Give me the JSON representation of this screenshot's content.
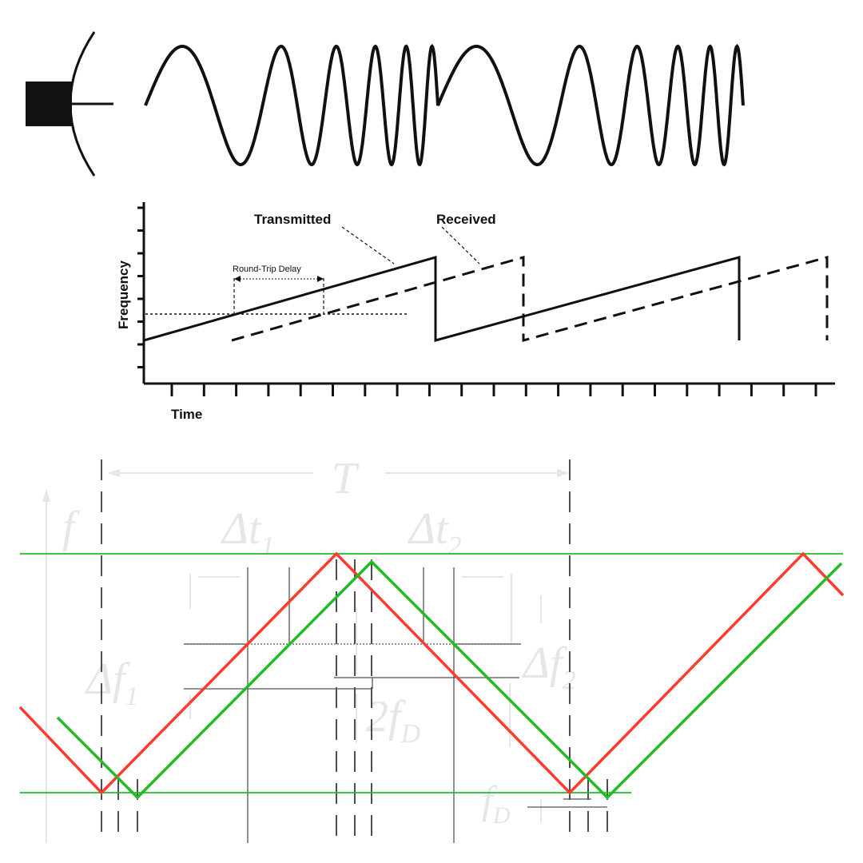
{
  "top_panel": {
    "wave_label": "",
    "colors": {
      "ink": "#111111"
    }
  },
  "middle_panel": {
    "y_label": "Frequency",
    "x_label": "Time",
    "transmitted_label": "Transmitted",
    "received_label": "Received",
    "delay_label": "Round-Trip Delay"
  },
  "bottom_panel": {
    "period_symbol": "T",
    "freq_symbol": "f",
    "dt1": "Δt",
    "dt1_sub": "1",
    "dt2": "Δt",
    "dt2_sub": "2",
    "df1": "Δf",
    "df1_sub": "1",
    "df2": "Δf",
    "df2_sub": "2",
    "two_fd": "2f",
    "two_fd_sub": "D",
    "fd": "f",
    "fd_sub": "D",
    "colors": {
      "transmitted": "#ff3b30",
      "received": "#22bb22",
      "annotation": "#e6e6e6"
    }
  }
}
